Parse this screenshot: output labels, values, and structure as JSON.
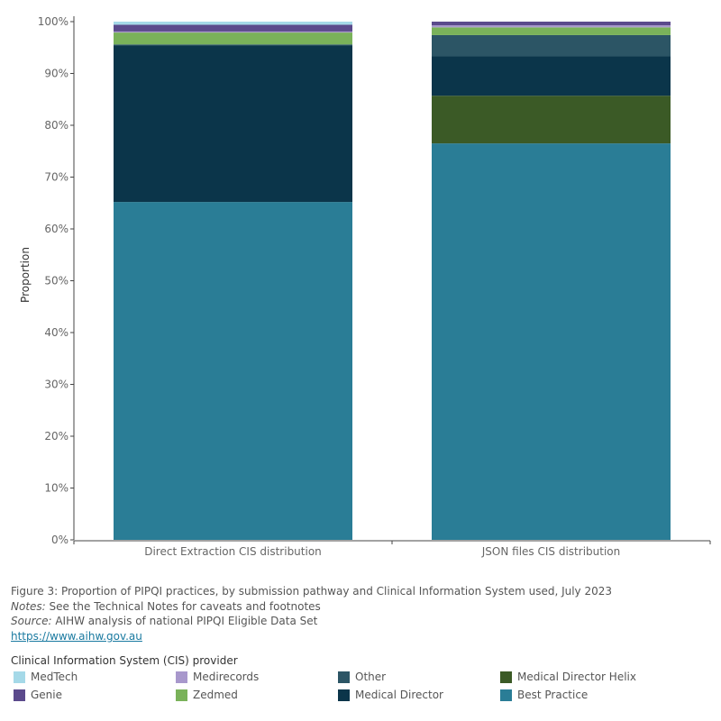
{
  "chart_data": {
    "type": "bar",
    "stacked": true,
    "categories": [
      "Direct Extraction CIS distribution",
      "JSON files CIS distribution"
    ],
    "ylabel": "Proportion",
    "ylim": [
      0,
      100
    ],
    "yticks": [
      "0%",
      "10%",
      "20%",
      "30%",
      "40%",
      "50%",
      "60%",
      "70%",
      "80%",
      "90%",
      "100%"
    ],
    "grid": false,
    "series": [
      {
        "name": "Best Practice",
        "color": "#2a7d96",
        "values": [
          65.2,
          76.5
        ]
      },
      {
        "name": "Medical Director Helix",
        "color": "#3b5a26",
        "values": [
          0.0,
          9.2
        ]
      },
      {
        "name": "Medical Director",
        "color": "#0b354a",
        "values": [
          30.2,
          7.6
        ]
      },
      {
        "name": "Other",
        "color": "#2c5565",
        "values": [
          0.2,
          4.1
        ]
      },
      {
        "name": "Zedmed",
        "color": "#7ab25a",
        "values": [
          2.3,
          1.5
        ]
      },
      {
        "name": "Medirecords",
        "color": "#a898cc",
        "values": [
          0.2,
          0.4
        ]
      },
      {
        "name": "Genie",
        "color": "#5b4a8c",
        "values": [
          1.3,
          0.7
        ]
      },
      {
        "name": "MedTech",
        "color": "#a5d9e8",
        "values": [
          0.6,
          0.0
        ]
      }
    ]
  },
  "caption": {
    "figure": "Figure 3: Proportion of PIPQI practices, by submission pathway and Clinical Information System used, July 2023",
    "notes_label": "Notes:",
    "notes_text": " See the Technical Notes for caveats and footnotes",
    "source_label": "Source:",
    "source_text": " AIHW analysis of national PIPQI Eligible Data Set",
    "link": "https://www.aihw.gov.au"
  },
  "legend": {
    "title": "Clinical Information System (CIS) provider",
    "items": [
      {
        "label": "MedTech",
        "color": "#a5d9e8"
      },
      {
        "label": "Medirecords",
        "color": "#a898cc"
      },
      {
        "label": "Other",
        "color": "#2c5565"
      },
      {
        "label": "Medical Director Helix",
        "color": "#3b5a26"
      },
      {
        "label": "Genie",
        "color": "#5b4a8c"
      },
      {
        "label": "Zedmed",
        "color": "#7ab25a"
      },
      {
        "label": "Medical Director",
        "color": "#0b354a"
      },
      {
        "label": "Best Practice",
        "color": "#2a7d96"
      }
    ]
  }
}
